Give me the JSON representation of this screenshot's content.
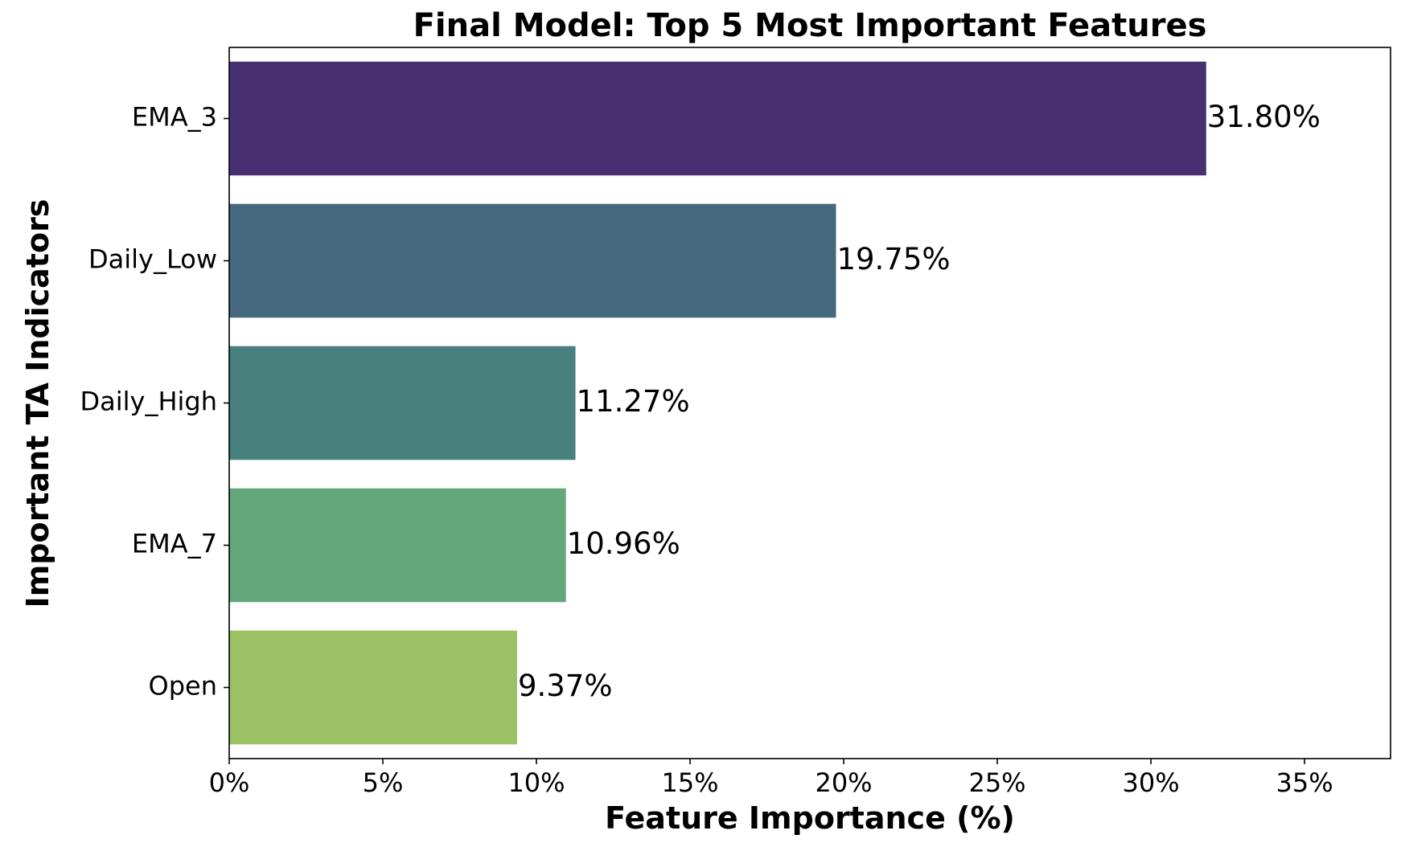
{
  "chart_data": {
    "type": "bar",
    "orientation": "horizontal",
    "title": "Final Model: Top 5 Most Important Features",
    "xlabel": "Feature Importance (%)",
    "ylabel": "Important TA Indicators",
    "categories": [
      "EMA_3",
      "Daily_Low",
      "Daily_High",
      "EMA_7",
      "Open"
    ],
    "values": [
      31.8,
      19.75,
      11.27,
      10.96,
      9.37
    ],
    "value_labels": [
      "31.80%",
      "19.75%",
      "11.27%",
      "10.96%",
      "9.37%"
    ],
    "colors": [
      "#482f72",
      "#45687e",
      "#47807d",
      "#63a77b",
      "#9ac265"
    ],
    "xlim": [
      0,
      37.8
    ],
    "xticks": [
      0,
      5,
      10,
      15,
      20,
      25,
      30,
      35
    ],
    "xtick_labels": [
      "0%",
      "5%",
      "10%",
      "15%",
      "20%",
      "25%",
      "30%",
      "35%"
    ],
    "grid": false,
    "legend": "none"
  }
}
